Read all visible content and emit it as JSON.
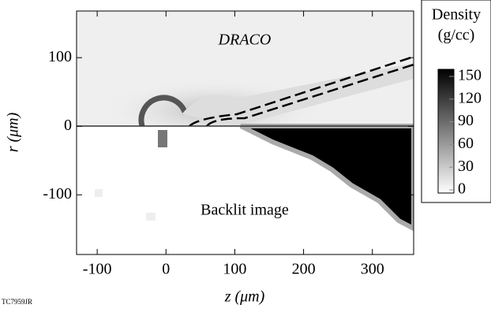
{
  "chart_data": {
    "type": "image",
    "annotations": [
      "DRACO",
      "Backlit image"
    ],
    "xlabel": "z (μm)",
    "ylabel": "r (μm)",
    "xlim": [
      -130,
      360
    ],
    "xticks": [
      -100,
      0,
      100,
      200,
      300
    ],
    "ylim": [
      -187,
      168
    ],
    "yticks": [
      -100,
      0,
      100
    ],
    "colorbar": {
      "title": [
        "Density",
        "(g/cc)"
      ],
      "lim": [
        0,
        150
      ],
      "ticks": [
        0,
        30,
        60,
        90,
        120,
        150
      ]
    },
    "footnote": "TC7959JR"
  }
}
